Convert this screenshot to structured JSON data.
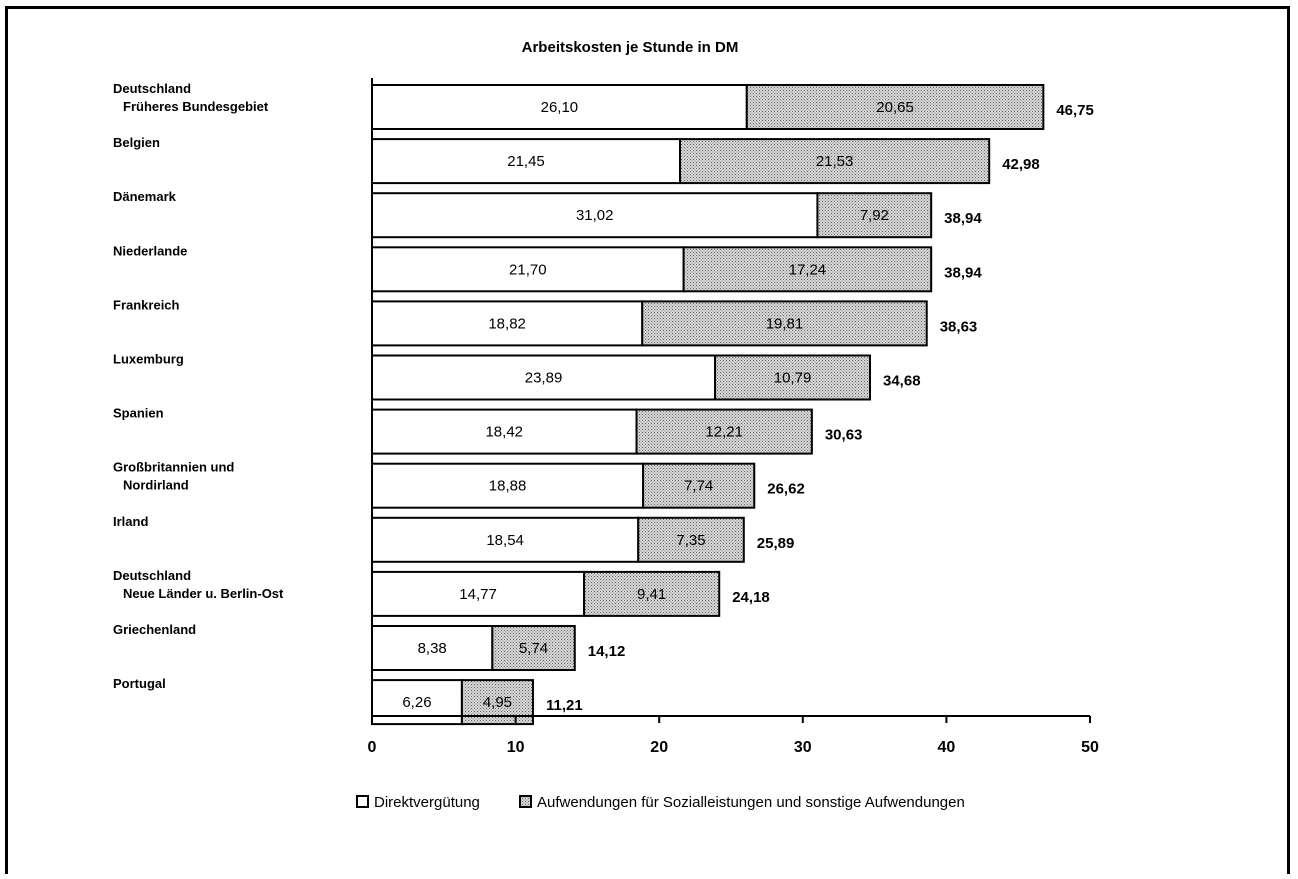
{
  "chart_data": {
    "type": "bar",
    "orientation": "horizontal",
    "stacked": true,
    "title": "Arbeitskosten je Stunde in DM",
    "categories": [
      [
        "Deutschland",
        "Früheres Bundesgebiet"
      ],
      [
        "Belgien"
      ],
      [
        "Dänemark"
      ],
      [
        "Niederlande"
      ],
      [
        "Frankreich"
      ],
      [
        "Luxemburg"
      ],
      [
        "Spanien"
      ],
      [
        "Großbritannien und",
        "Nordirland"
      ],
      [
        "Irland"
      ],
      [
        "Deutschland",
        "Neue Länder u. Berlin-Ost"
      ],
      [
        "Griechenland"
      ],
      [
        "Portugal"
      ]
    ],
    "series": [
      {
        "name": "Direktvergütung",
        "values": [
          26.1,
          21.45,
          31.02,
          21.7,
          18.82,
          23.89,
          18.42,
          18.88,
          18.54,
          14.77,
          8.38,
          6.26
        ],
        "labels": [
          "26,10",
          "21,45",
          "31,02",
          "21,70",
          "18,82",
          "23,89",
          "18,42",
          "18,88",
          "18,54",
          "14,77",
          "8,38",
          "6,26"
        ],
        "color": "#ffffff"
      },
      {
        "name": "Aufwendungen für Sozialleistungen und sonstige Aufwendungen",
        "values": [
          20.65,
          21.53,
          7.92,
          17.24,
          19.81,
          10.79,
          12.21,
          7.74,
          7.35,
          9.41,
          5.74,
          4.95
        ],
        "labels": [
          "20,65",
          "21,53",
          "7,92",
          "17,24",
          "19,81",
          "10,79",
          "12,21",
          "7,74",
          "7,35",
          "9,41",
          "5,74",
          "4,95"
        ],
        "color": "#c8c8c8"
      }
    ],
    "totals": [
      46.75,
      42.98,
      38.94,
      38.94,
      38.63,
      34.68,
      30.63,
      26.62,
      25.89,
      24.18,
      14.12,
      11.21
    ],
    "total_labels": [
      "46,75",
      "42,98",
      "38,94",
      "38,94",
      "38,63",
      "34,68",
      "30,63",
      "26,62",
      "25,89",
      "24,18",
      "14,12",
      "11,21"
    ],
    "xlim": [
      0,
      50
    ],
    "xticks": [
      0,
      10,
      20,
      30,
      40,
      50
    ],
    "xtick_labels": [
      "0",
      "10",
      "20",
      "30",
      "40",
      "50"
    ],
    "grid": false,
    "legend_position": "bottom"
  }
}
